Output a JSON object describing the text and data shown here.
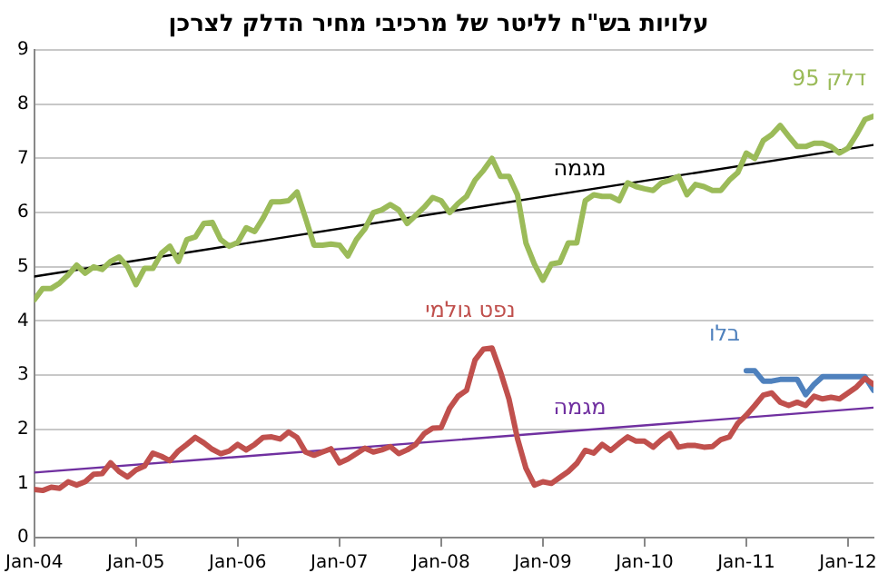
{
  "chart_data": {
    "type": "line",
    "title": "עלויות בש\"ח לליטר של מרכיבי מחיר הדלק לצרכן",
    "x": [
      "2004-01",
      "2004-02",
      "2004-03",
      "2004-04",
      "2004-05",
      "2004-06",
      "2004-07",
      "2004-08",
      "2004-09",
      "2004-10",
      "2004-11",
      "2004-12",
      "2005-01",
      "2005-02",
      "2005-03",
      "2005-04",
      "2005-05",
      "2005-06",
      "2005-07",
      "2005-08",
      "2005-09",
      "2005-10",
      "2005-11",
      "2005-12",
      "2006-01",
      "2006-02",
      "2006-03",
      "2006-04",
      "2006-05",
      "2006-06",
      "2006-07",
      "2006-08",
      "2006-09",
      "2006-10",
      "2006-11",
      "2006-12",
      "2007-01",
      "2007-02",
      "2007-03",
      "2007-04",
      "2007-05",
      "2007-06",
      "2007-07",
      "2007-08",
      "2007-09",
      "2007-10",
      "2007-11",
      "2007-12",
      "2008-01",
      "2008-02",
      "2008-03",
      "2008-04",
      "2008-05",
      "2008-06",
      "2008-07",
      "2008-08",
      "2008-09",
      "2008-10",
      "2008-11",
      "2008-12",
      "2009-01",
      "2009-02",
      "2009-03",
      "2009-04",
      "2009-05",
      "2009-06",
      "2009-07",
      "2009-08",
      "2009-09",
      "2009-10",
      "2009-11",
      "2009-12",
      "2010-01",
      "2010-02",
      "2010-03",
      "2010-04",
      "2010-05",
      "2010-06",
      "2010-07",
      "2010-08",
      "2010-09",
      "2010-10",
      "2010-11",
      "2010-12",
      "2011-01",
      "2011-02",
      "2011-03",
      "2011-04",
      "2011-05",
      "2011-06",
      "2011-07",
      "2011-08",
      "2011-09",
      "2011-10",
      "2011-11",
      "2011-12",
      "2012-01",
      "2012-02",
      "2012-03",
      "2012-04"
    ],
    "series": [
      {
        "name": "דלק 95",
        "color": "#9bbb59",
        "values": [
          4.39,
          4.6,
          4.6,
          4.7,
          4.85,
          5.03,
          4.88,
          5.0,
          4.95,
          5.1,
          5.18,
          5.0,
          4.67,
          4.97,
          4.97,
          5.25,
          5.38,
          5.1,
          5.5,
          5.55,
          5.8,
          5.82,
          5.5,
          5.38,
          5.45,
          5.72,
          5.65,
          5.9,
          6.2,
          6.2,
          6.22,
          6.38,
          5.9,
          5.4,
          5.4,
          5.42,
          5.4,
          5.2,
          5.5,
          5.7,
          6.0,
          6.05,
          6.15,
          6.05,
          5.8,
          5.95,
          6.1,
          6.28,
          6.22,
          6.0,
          6.17,
          6.3,
          6.6,
          6.78,
          7.0,
          6.67,
          6.67,
          6.33,
          5.44,
          5.05,
          4.75,
          5.05,
          5.08,
          5.44,
          5.44,
          6.22,
          6.33,
          6.3,
          6.3,
          6.22,
          6.55,
          6.48,
          6.44,
          6.41,
          6.55,
          6.6,
          6.67,
          6.33,
          6.52,
          6.48,
          6.41,
          6.41,
          6.6,
          6.74,
          7.1,
          7.0,
          7.33,
          7.44,
          7.61,
          7.41,
          7.22,
          7.22,
          7.28,
          7.28,
          7.22,
          7.1,
          7.19,
          7.44,
          7.72,
          7.78
        ]
      },
      {
        "name": "נפט גולמי",
        "color": "#c0504d",
        "values": [
          0.89,
          0.87,
          0.93,
          0.91,
          1.03,
          0.97,
          1.03,
          1.17,
          1.18,
          1.38,
          1.22,
          1.12,
          1.25,
          1.32,
          1.56,
          1.5,
          1.42,
          1.6,
          1.72,
          1.85,
          1.75,
          1.63,
          1.55,
          1.6,
          1.72,
          1.62,
          1.72,
          1.85,
          1.86,
          1.82,
          1.95,
          1.85,
          1.58,
          1.52,
          1.58,
          1.64,
          1.38,
          1.45,
          1.55,
          1.65,
          1.58,
          1.62,
          1.68,
          1.55,
          1.62,
          1.72,
          1.92,
          2.02,
          2.03,
          2.39,
          2.61,
          2.72,
          3.28,
          3.48,
          3.5,
          3.06,
          2.56,
          1.83,
          1.28,
          0.97,
          1.03,
          1.0,
          1.11,
          1.22,
          1.37,
          1.61,
          1.56,
          1.72,
          1.61,
          1.74,
          1.86,
          1.78,
          1.78,
          1.67,
          1.81,
          1.92,
          1.67,
          1.7,
          1.7,
          1.67,
          1.68,
          1.81,
          1.86,
          2.11,
          2.26,
          2.44,
          2.63,
          2.67,
          2.5,
          2.44,
          2.5,
          2.44,
          2.61,
          2.56,
          2.59,
          2.56,
          2.67,
          2.78,
          2.94,
          2.83
        ]
      },
      {
        "name": "בלו",
        "color": "#4f81bd",
        "x": [
          "2011-01",
          "2011-02",
          "2011-03",
          "2011-04",
          "2011-05",
          "2011-06",
          "2011-07",
          "2011-08",
          "2011-09",
          "2011-10",
          "2011-11",
          "2011-12",
          "2012-01",
          "2012-02",
          "2012-03",
          "2012-04"
        ],
        "values": [
          3.08,
          3.08,
          2.89,
          2.89,
          2.92,
          2.92,
          2.92,
          2.64,
          2.83,
          2.97,
          2.97,
          2.97,
          2.97,
          2.97,
          2.97,
          2.72
        ]
      },
      {
        "name": "מגמה",
        "color": "#000000",
        "x": [
          "2004-01",
          "2012-04"
        ],
        "values": [
          4.82,
          7.25
        ]
      },
      {
        "name": "מגמה",
        "color": "#7030a0",
        "x": [
          "2004-01",
          "2012-04"
        ],
        "values": [
          1.2,
          2.4
        ]
      }
    ],
    "xlim": [
      "2004-01",
      "2012-04"
    ],
    "xticks": [
      {
        "value": "2004-01",
        "label": "Jan-04"
      },
      {
        "value": "2005-01",
        "label": "Jan-05"
      },
      {
        "value": "2006-01",
        "label": "Jan-06"
      },
      {
        "value": "2007-01",
        "label": "Jan-07"
      },
      {
        "value": "2008-01",
        "label": "Jan-08"
      },
      {
        "value": "2009-01",
        "label": "Jan-09"
      },
      {
        "value": "2010-01",
        "label": "Jan-10"
      },
      {
        "value": "2011-01",
        "label": "Jan-11"
      },
      {
        "value": "2012-01",
        "label": "Jan-12"
      }
    ],
    "ylim": [
      0,
      9
    ],
    "yticks": [
      0,
      1,
      2,
      3,
      4,
      5,
      6,
      7,
      8,
      9
    ],
    "grid": "y",
    "legend": false,
    "marker": "none",
    "line_style": "solid"
  }
}
